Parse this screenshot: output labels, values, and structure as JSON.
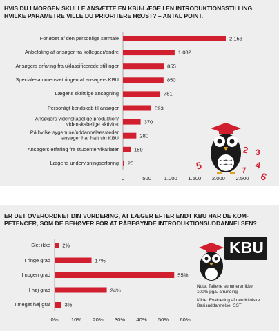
{
  "chart_data": [
    {
      "type": "hbar",
      "title": "HVIS DU I MORGEN SKULLE ANSÆTTE EN KBU-LÆGE I EN INTRODUKTIONSSTILLING,\nHVILKE PARAMETRE VILLE DU PRIORITERE HØJST? – ANTAL POINT.",
      "categories": [
        "Forløbet af den personlige samtale",
        "Anbefaling af ansøger fra kollegaer/andre",
        "Ansøgers erfaring fra uklassificerede stillinger",
        "Specialesammensætningen af ansøgers KBU",
        "Lægens skriftlige ansøgning",
        "Personligt kendskab til ansøger",
        "Ansøgers videnskabelige produktion/\nvidenskabelige aktivitet",
        "På hvilke sygehuse/uddannelsessteder\nansøger har haft sin KBU",
        "Ansøgers erfaring fra studentervikariater",
        "Lægens undervisningserfaring"
      ],
      "values": [
        2153,
        1082,
        855,
        850,
        781,
        593,
        370,
        280,
        159,
        25
      ],
      "value_labels": [
        "2.153",
        "1.082",
        "855",
        "850",
        "781",
        "593",
        "370",
        "280",
        "159",
        "25"
      ],
      "color": "#d21f2f",
      "xlim": [
        0,
        2500
      ],
      "xticks": [
        0,
        500,
        {
          "value": 1000,
          "label": "1.000"
        },
        {
          "value": 1500,
          "label": "1.500"
        },
        {
          "value": 2000,
          "label": "2.000"
        },
        {
          "value": 2500,
          "label": "2.500"
        }
      ]
    },
    {
      "type": "hbar",
      "title": "ER DET OVERORDNET DIN VURDERING, AT LÆGER EFTER ENDT KBU HAR DE KOM-\nPETENCER, SOM DE BEHØVER FOR AT PÅBEGYNDE INTRODUKTIONSUDDANNELSEN?",
      "categories": [
        "Slet ikke",
        "I ringe grad",
        "I nogen grad",
        "I høj grad",
        "I meget høj graf"
      ],
      "values": [
        2,
        17,
        55,
        24,
        3
      ],
      "value_labels": [
        "2%",
        "17%",
        "55%",
        "24%",
        "3%"
      ],
      "color": "#d21f2f",
      "xlim": [
        0,
        60
      ],
      "xticks": [
        {
          "value": 0,
          "label": "0%"
        },
        {
          "value": 10,
          "label": "10%"
        },
        {
          "value": 20,
          "label": "20%"
        },
        {
          "value": 30,
          "label": "30%"
        },
        {
          "value": 40,
          "label": "40%"
        },
        {
          "value": 50,
          "label": "50%"
        },
        {
          "value": 60,
          "label": "60%"
        }
      ]
    }
  ],
  "badge": "KBU",
  "note": "Note: Tallene summerer ikke\n100% pga. afrunding",
  "source": "Kilde: Evaluering af den Kliniske\nBasisuddannelse, SST",
  "decor_numbers": [
    "5",
    "2",
    "4",
    "7",
    "3",
    "6"
  ]
}
